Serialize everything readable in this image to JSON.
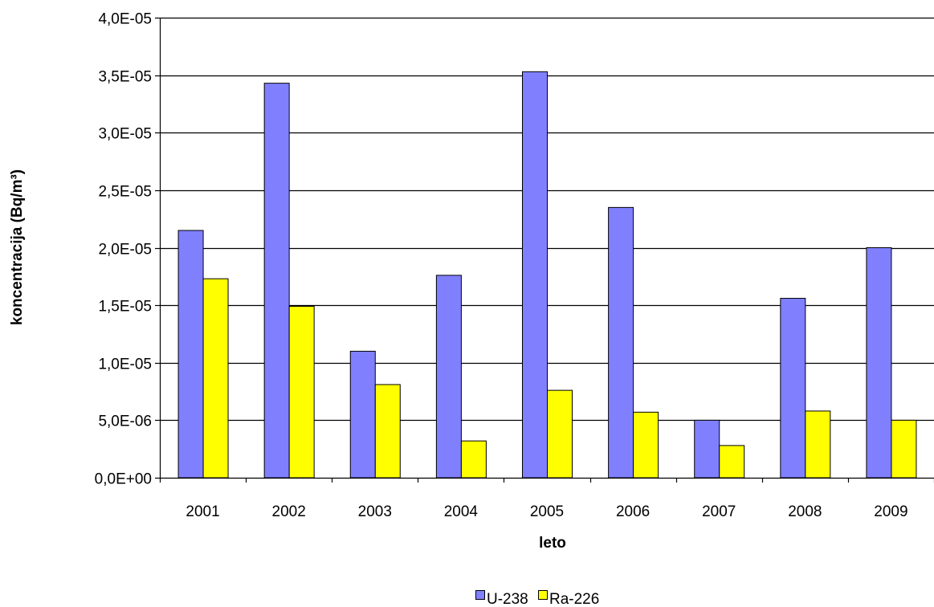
{
  "chart_data": {
    "type": "bar",
    "categories": [
      "2001",
      "2002",
      "2003",
      "2004",
      "2005",
      "2006",
      "2007",
      "2008",
      "2009"
    ],
    "series": [
      {
        "name": "U-238",
        "color": "#8080ff",
        "values": [
          2.15e-05,
          3.43e-05,
          1.1e-05,
          1.76e-05,
          3.53e-05,
          2.35e-05,
          5e-06,
          1.56e-05,
          2e-05
        ]
      },
      {
        "name": "Ra-226",
        "color": "#ffff00",
        "values": [
          1.73e-05,
          1.49e-05,
          8.1e-06,
          3.2e-06,
          7.6e-06,
          5.7e-06,
          2.8e-06,
          5.8e-06,
          5e-06
        ]
      }
    ],
    "ylim": [
      0,
      4e-05
    ],
    "yticks": [
      {
        "value": 0,
        "label": "0,0E+00"
      },
      {
        "value": 5e-06,
        "label": "5,0E-06"
      },
      {
        "value": 1e-05,
        "label": "1,0E-05"
      },
      {
        "value": 1.5e-05,
        "label": "1,5E-05"
      },
      {
        "value": 2e-05,
        "label": "2,0E-05"
      },
      {
        "value": 2.5e-05,
        "label": "2,5E-05"
      },
      {
        "value": 3e-05,
        "label": "3,0E-05"
      },
      {
        "value": 3.5e-05,
        "label": "3,5E-05"
      },
      {
        "value": 4e-05,
        "label": "4,0E-05"
      }
    ],
    "xlabel": "leto",
    "ylabel": "koncentracija  (Bq/m³)",
    "grid": true,
    "legend_position": "bottom-center"
  }
}
